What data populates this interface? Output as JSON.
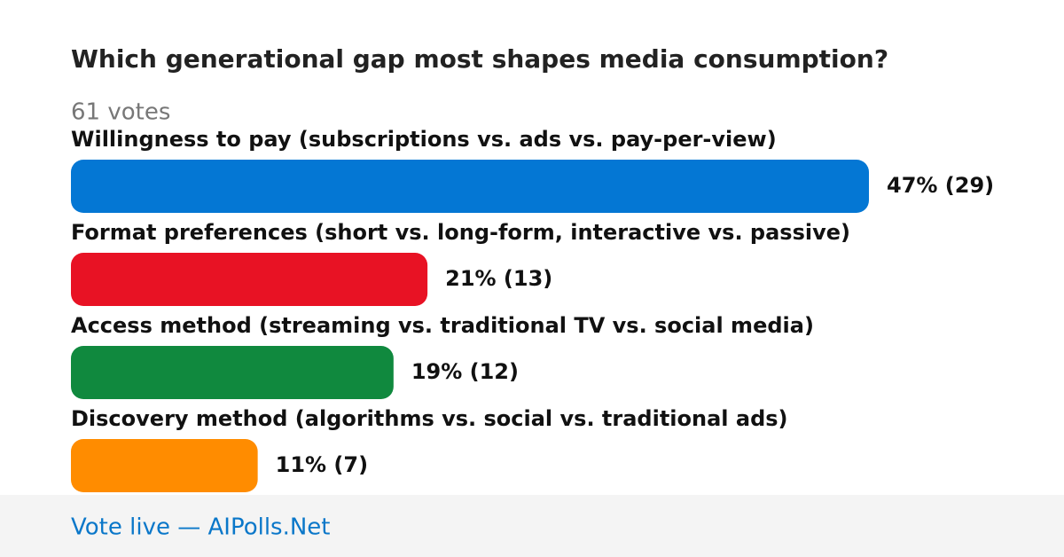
{
  "chart_data": {
    "type": "bar",
    "orientation": "horizontal",
    "title": "Which generational gap most shapes media consumption?",
    "subtitle": "61 votes",
    "categories": [
      "Willingness to pay (subscriptions vs. ads vs. pay-per-view)",
      "Format preferences (short vs. long-form, interactive vs. passive)",
      "Access method (streaming vs. traditional TV vs. social media)",
      "Discovery method (algorithms vs. social vs. traditional ads)"
    ],
    "values": [
      47,
      21,
      19,
      11
    ],
    "value_labels": [
      "47% (29)",
      "21% (13)",
      "19% (12)",
      "11% (7)"
    ],
    "colors": [
      "#0477d4",
      "#e81224",
      "#10893e",
      "#ff8c00"
    ],
    "footer": "Vote live — AIPolls.Net"
  }
}
